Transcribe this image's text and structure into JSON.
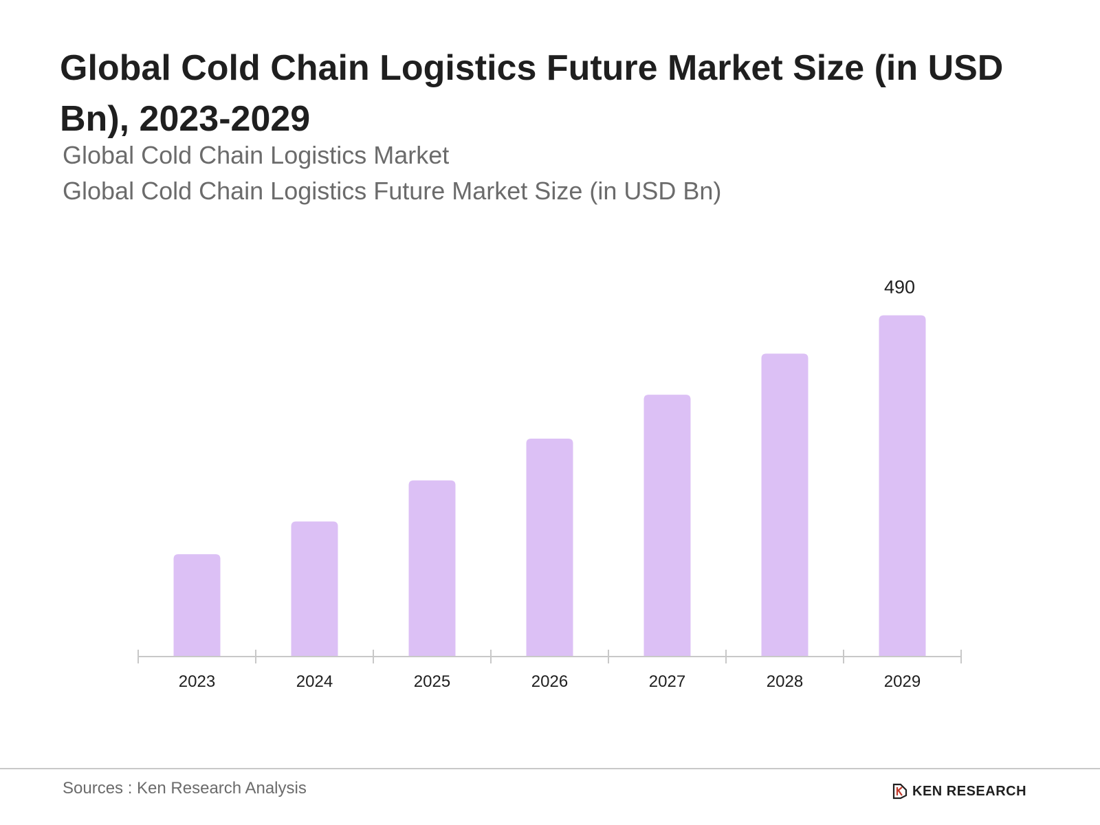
{
  "header": {
    "title": "Global Cold Chain Logistics Future Market Size (in USD Bn), 2023-2029",
    "subtitle_1": "Global Cold Chain Logistics Market",
    "subtitle_2": "Global Cold Chain Logistics Future Market Size (in USD Bn)"
  },
  "footer": {
    "source": "Sources : Ken Research Analysis",
    "brand": "KEN RESEARCH"
  },
  "colors": {
    "bar": "#dcc0f5",
    "axis": "#c8c8c8",
    "text": "#1f1f1f"
  },
  "chart_data": {
    "type": "bar",
    "title": "Global Cold Chain Logistics Future Market Size (in USD Bn), 2023-2029",
    "xlabel": "",
    "ylabel": "",
    "categories": [
      "2023",
      "2024",
      "2025",
      "2026",
      "2027",
      "2028",
      "2029"
    ],
    "values": [
      147,
      194,
      253,
      313,
      376,
      435,
      490
    ],
    "data_labels": [
      null,
      null,
      null,
      null,
      null,
      null,
      "490"
    ],
    "ylim": [
      0,
      540
    ],
    "grid": false,
    "legend": "none"
  }
}
